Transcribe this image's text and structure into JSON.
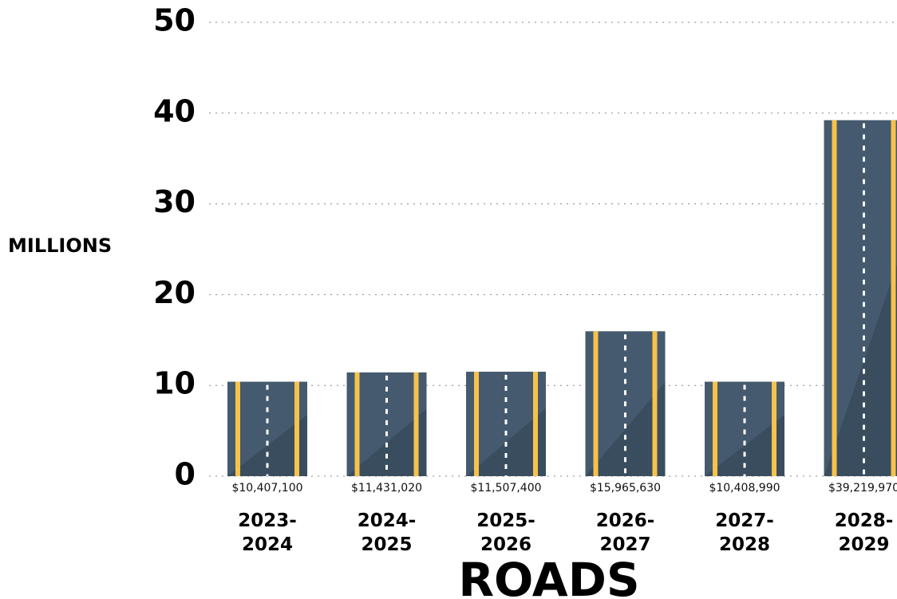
{
  "chart_data": {
    "type": "bar",
    "title": "ROADS",
    "y_label": "MILLIONS",
    "categories": [
      "2023-2024",
      "2024-2025",
      "2025-2026",
      "2026-2027",
      "2027-2028",
      "2028-2029"
    ],
    "values": [
      10.4071,
      11.43102,
      11.5074,
      15.96563,
      10.40899,
      39.21997
    ],
    "value_labels": [
      "$10,407,100",
      "$11,431,020",
      "$11,507,400",
      "$15,965,630",
      "$10,408,990",
      "$39,219,970"
    ],
    "color": "#455a6e",
    "ylim": [
      0,
      50
    ],
    "yticks": [
      0,
      10,
      20,
      30,
      40,
      50
    ],
    "grid": true
  }
}
